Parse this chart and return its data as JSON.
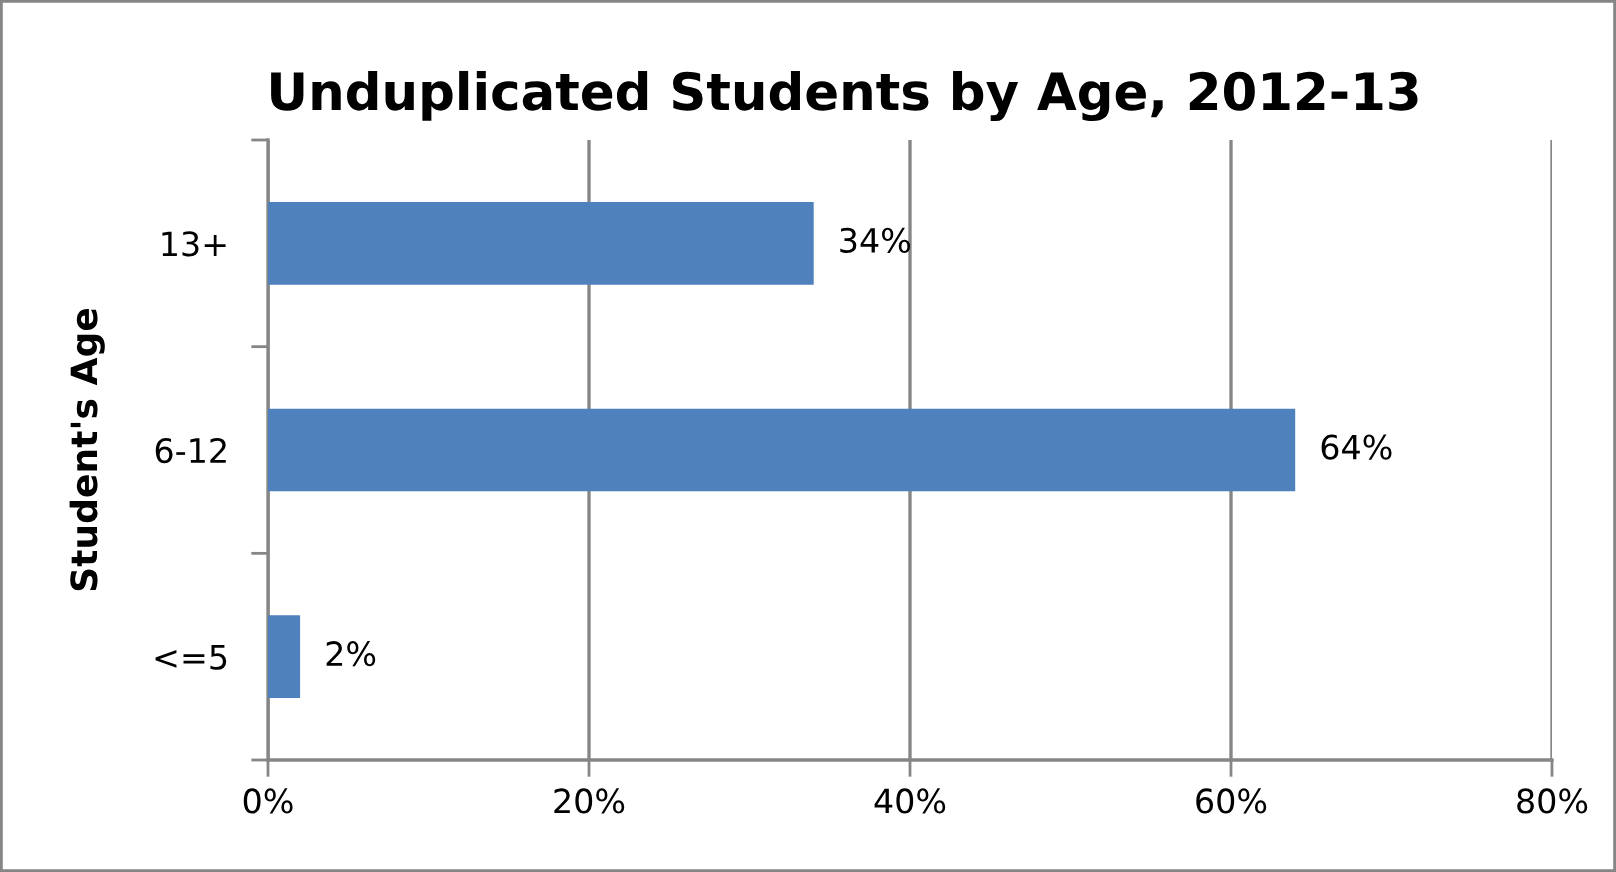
{
  "chart_data": {
    "type": "bar",
    "orientation": "horizontal",
    "title": "Unduplicated Students by Age, 2012-13",
    "ylabel": "Student's Age",
    "categories": [
      "13+",
      "6-12",
      "<=5"
    ],
    "values": [
      34,
      64,
      2
    ],
    "color": "#4f81bd",
    "value_labels": [
      "34%",
      "64%",
      "2%"
    ],
    "xlim": [
      0,
      80
    ],
    "xticks": [
      {
        "value": 0,
        "label": "0%"
      },
      {
        "value": 20,
        "label": "20%"
      },
      {
        "value": 40,
        "label": "40%"
      },
      {
        "value": 60,
        "label": "60%"
      },
      {
        "value": 80,
        "label": "80%"
      }
    ],
    "grid": "x"
  }
}
